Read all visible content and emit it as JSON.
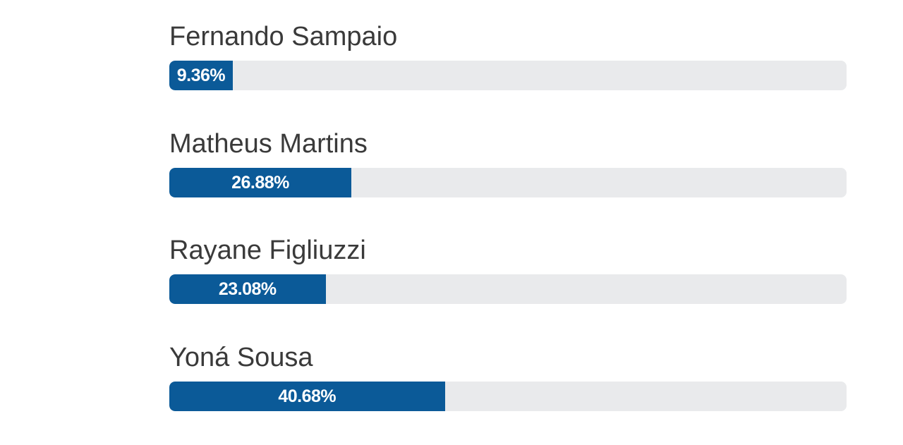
{
  "poll": {
    "bar_color": "#0b5a98",
    "track_color": "#e9eaec",
    "options": [
      {
        "name": "Fernando Sampaio",
        "percent_label": "9.36%",
        "percent": 9.36
      },
      {
        "name": "Matheus Martins",
        "percent_label": "26.88%",
        "percent": 26.88
      },
      {
        "name": "Rayane Figliuzzi",
        "percent_label": "23.08%",
        "percent": 23.08
      },
      {
        "name": "Yoná Sousa",
        "percent_label": "40.68%",
        "percent": 40.68
      }
    ]
  }
}
